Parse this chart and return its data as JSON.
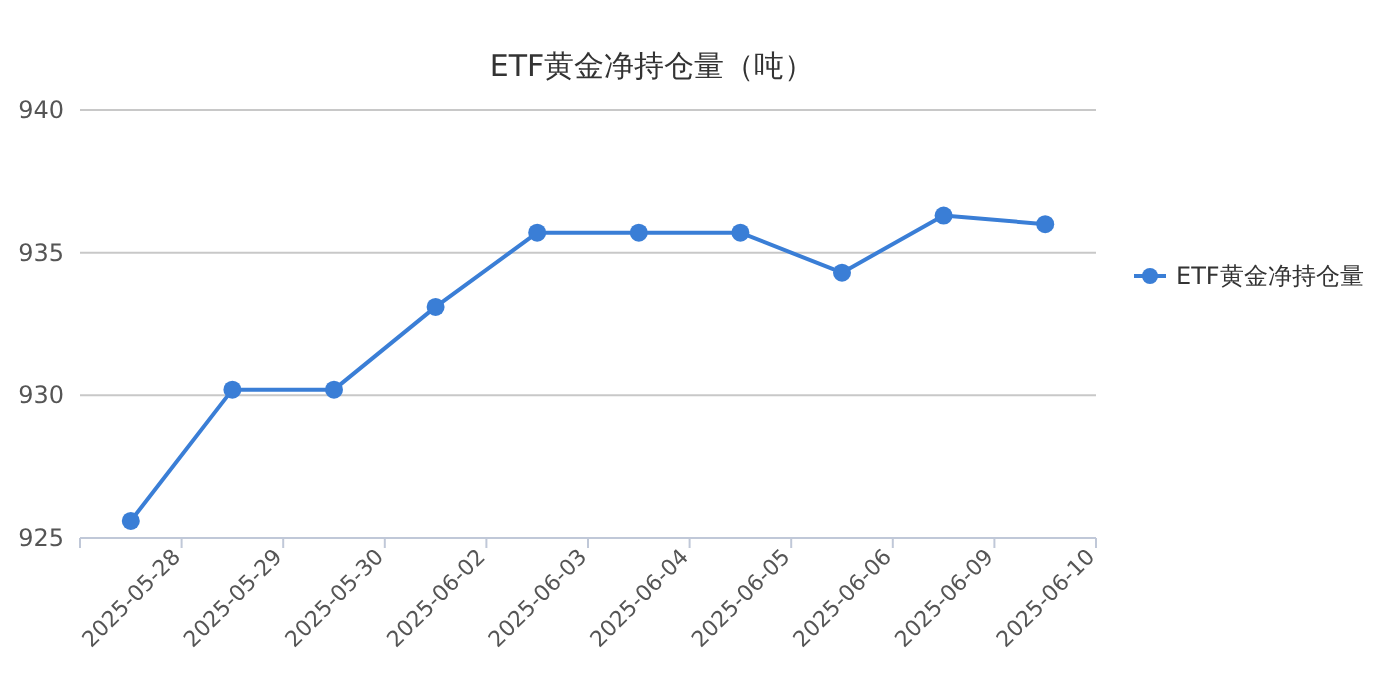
{
  "chart_data": {
    "type": "line",
    "title": "ETF黄金净持仓量（吨）",
    "categories": [
      "2025-05-28",
      "2025-05-29",
      "2025-05-30",
      "2025-06-02",
      "2025-06-03",
      "2025-06-04",
      "2025-06-05",
      "2025-06-06",
      "2025-06-09",
      "2025-06-10"
    ],
    "series": [
      {
        "name": "ETF黄金净持仓量",
        "color": "#3a7ed6",
        "values": [
          925.6,
          930.2,
          930.2,
          933.1,
          935.7,
          935.7,
          935.7,
          934.3,
          936.3,
          936.0
        ]
      }
    ],
    "ylim": [
      925,
      940
    ],
    "yticks": [
      925,
      930,
      935,
      940
    ],
    "grid": "y",
    "legend": "right",
    "marker": "circle",
    "line_style": "solid"
  }
}
